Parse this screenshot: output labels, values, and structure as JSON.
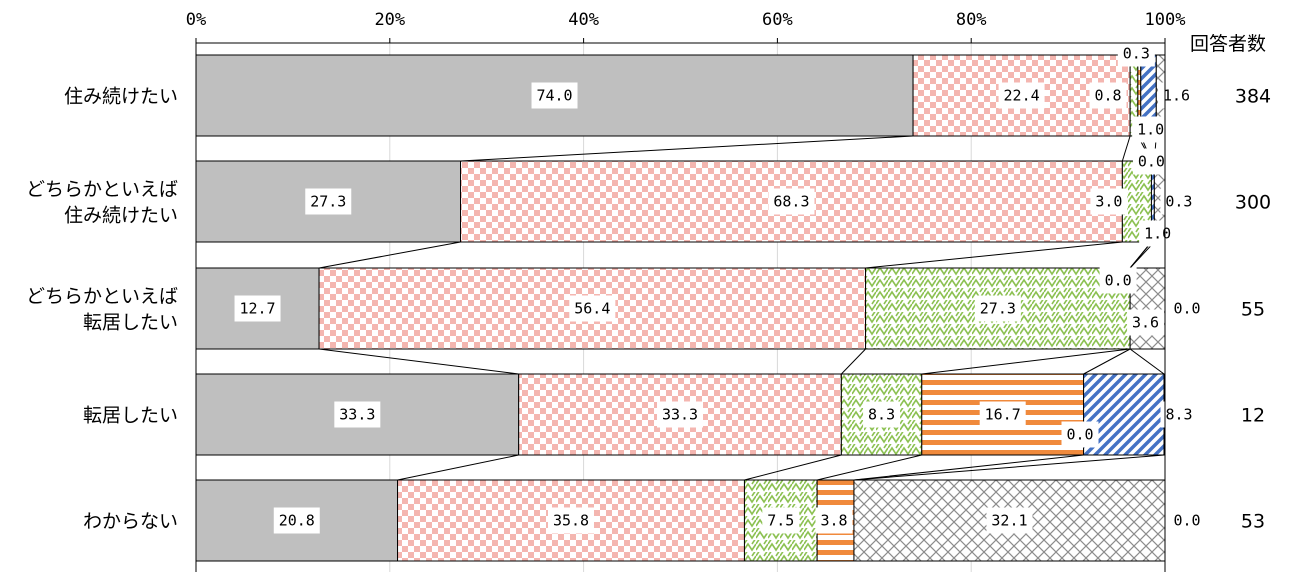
{
  "chart_data": {
    "type": "bar",
    "orientation": "horizontal",
    "stacked": "100%",
    "x_ticks": [
      "0%",
      "20%",
      "40%",
      "60%",
      "80%",
      "100%"
    ],
    "xlim": [
      0,
      100
    ],
    "count_header": "回答者数",
    "categories": [
      {
        "lines": [
          "住み続けたい"
        ]
      },
      {
        "lines": [
          "どちらかといえば",
          "住み続けたい"
        ]
      },
      {
        "lines": [
          "どちらかといえば",
          "転居したい"
        ]
      },
      {
        "lines": [
          "転居したい"
        ]
      },
      {
        "lines": [
          "わからない"
        ]
      }
    ],
    "counts": [
      "384",
      "300",
      "55",
      "12",
      "53"
    ],
    "series": [
      {
        "values": [
          74.0,
          27.3,
          12.7,
          33.3,
          20.8
        ],
        "labels": [
          "74.0",
          "27.3",
          "12.7",
          "33.3",
          "20.8"
        ],
        "color": "#bfbfbf",
        "pattern": "solid"
      },
      {
        "values": [
          22.4,
          68.3,
          56.4,
          33.3,
          35.8
        ],
        "labels": [
          "22.4",
          "68.3",
          "56.4",
          "33.3",
          "35.8"
        ],
        "color": "#f4b6b0",
        "pattern": "checker"
      },
      {
        "values": [
          0.8,
          3.0,
          27.3,
          8.3,
          7.5
        ],
        "labels": [
          "0.8",
          "3.0",
          "27.3",
          "8.3",
          "7.5"
        ],
        "color": "#8cc152",
        "pattern": "zigzag"
      },
      {
        "values": [
          0.3,
          0.0,
          0.0,
          16.7,
          3.8
        ],
        "labels": [
          "0.3",
          "0.0",
          "0.0",
          "16.7",
          "3.8"
        ],
        "color": "#f08a3c",
        "pattern": "horizontal-lines"
      },
      {
        "values": [
          1.6,
          0.3,
          0.0,
          8.3,
          0.0
        ],
        "labels": [
          "1.6",
          "0.3",
          "0.0",
          "8.3",
          "0.0"
        ],
        "color": "#4472c4",
        "pattern": "diagonal-lines"
      },
      {
        "values": [
          1.0,
          1.0,
          3.6,
          0.0,
          32.1
        ],
        "labels": [
          "1.0",
          "1.0",
          "3.6",
          "0.0",
          "32.1"
        ],
        "color": "#8c8c8c",
        "pattern": "crosshatch"
      }
    ]
  }
}
